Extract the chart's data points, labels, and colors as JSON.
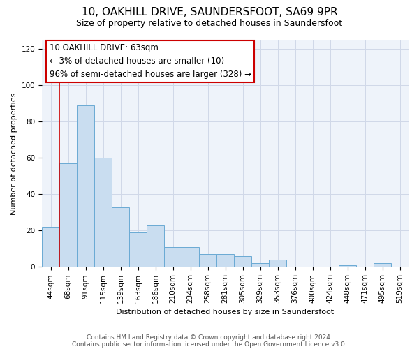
{
  "title": "10, OAKHILL DRIVE, SAUNDERSFOOT, SA69 9PR",
  "subtitle": "Size of property relative to detached houses in Saundersfoot",
  "xlabel": "Distribution of detached houses by size in Saundersfoot",
  "ylabel": "Number of detached properties",
  "footnote1": "Contains HM Land Registry data © Crown copyright and database right 2024.",
  "footnote2": "Contains public sector information licensed under the Open Government Licence v3.0.",
  "bar_labels": [
    "44sqm",
    "68sqm",
    "91sqm",
    "115sqm",
    "139sqm",
    "163sqm",
    "186sqm",
    "210sqm",
    "234sqm",
    "258sqm",
    "281sqm",
    "305sqm",
    "329sqm",
    "353sqm",
    "376sqm",
    "400sqm",
    "424sqm",
    "448sqm",
    "471sqm",
    "495sqm",
    "519sqm"
  ],
  "bar_values": [
    22,
    57,
    89,
    60,
    33,
    19,
    23,
    11,
    11,
    7,
    7,
    6,
    2,
    4,
    0,
    0,
    0,
    1,
    0,
    2,
    0
  ],
  "bar_color": "#c9ddf0",
  "bar_edge_color": "#6aaad4",
  "annotation_line1": "10 OAKHILL DRIVE: 63sqm",
  "annotation_line2": "← 3% of detached houses are smaller (10)",
  "annotation_line3": "96% of semi-detached houses are larger (328) →",
  "annotation_box_color": "#ffffff",
  "annotation_box_edge_color": "#cc0000",
  "annotation_line_color": "#cc0000",
  "ylim": [
    0,
    125
  ],
  "yticks": [
    0,
    20,
    40,
    60,
    80,
    100,
    120
  ],
  "grid_color": "#d0d8e8",
  "bg_color": "#ffffff",
  "plot_bg_color": "#eef3fa",
  "title_fontsize": 11,
  "subtitle_fontsize": 9,
  "annotation_fontsize": 8.5,
  "axis_label_fontsize": 8,
  "tick_fontsize": 7.5,
  "footnote_fontsize": 6.5
}
